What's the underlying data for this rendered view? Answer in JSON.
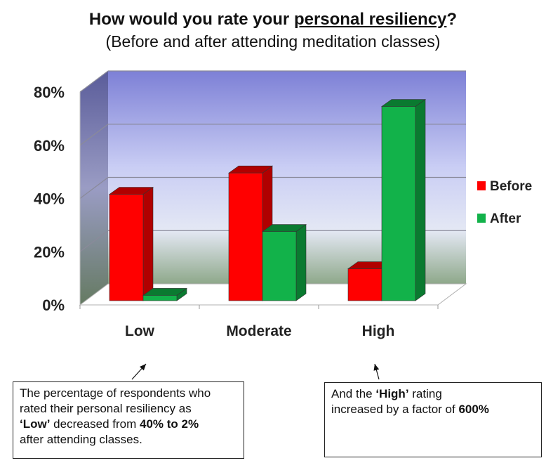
{
  "title": {
    "prefix": "How would you  rate your ",
    "underlined": "personal resiliency",
    "suffix": "?"
  },
  "subtitle": "(Before and after attending  meditation classes)",
  "chart_data": {
    "type": "bar",
    "categories": [
      "Low",
      "Moderate",
      "High"
    ],
    "series": [
      {
        "name": "Before",
        "values": [
          40,
          48,
          12
        ],
        "color": "#ff0000",
        "dark": "#b00000"
      },
      {
        "name": "After",
        "values": [
          2,
          26,
          73
        ],
        "color": "#12b24a",
        "dark": "#0a7a30"
      }
    ],
    "ylim": [
      0,
      80
    ],
    "yticks": [
      "0%",
      "20%",
      "40%",
      "60%",
      "80%"
    ],
    "grid": true,
    "legend": "right"
  },
  "annotations": {
    "note1": {
      "line1": "The percentage of respondents who",
      "line2": "rated their personal resiliency as",
      "line3_bold": "‘Low’",
      "line3_rest": " decreased from ",
      "line3_bold2": "40% to 2%",
      "line4": "after attending classes."
    },
    "note2": {
      "line1_prefix": "And the ",
      "line1_bold": "‘High’",
      "line1_suffix": " rating",
      "line2_prefix": "increased by a factor of ",
      "line2_bold": "600%"
    }
  }
}
